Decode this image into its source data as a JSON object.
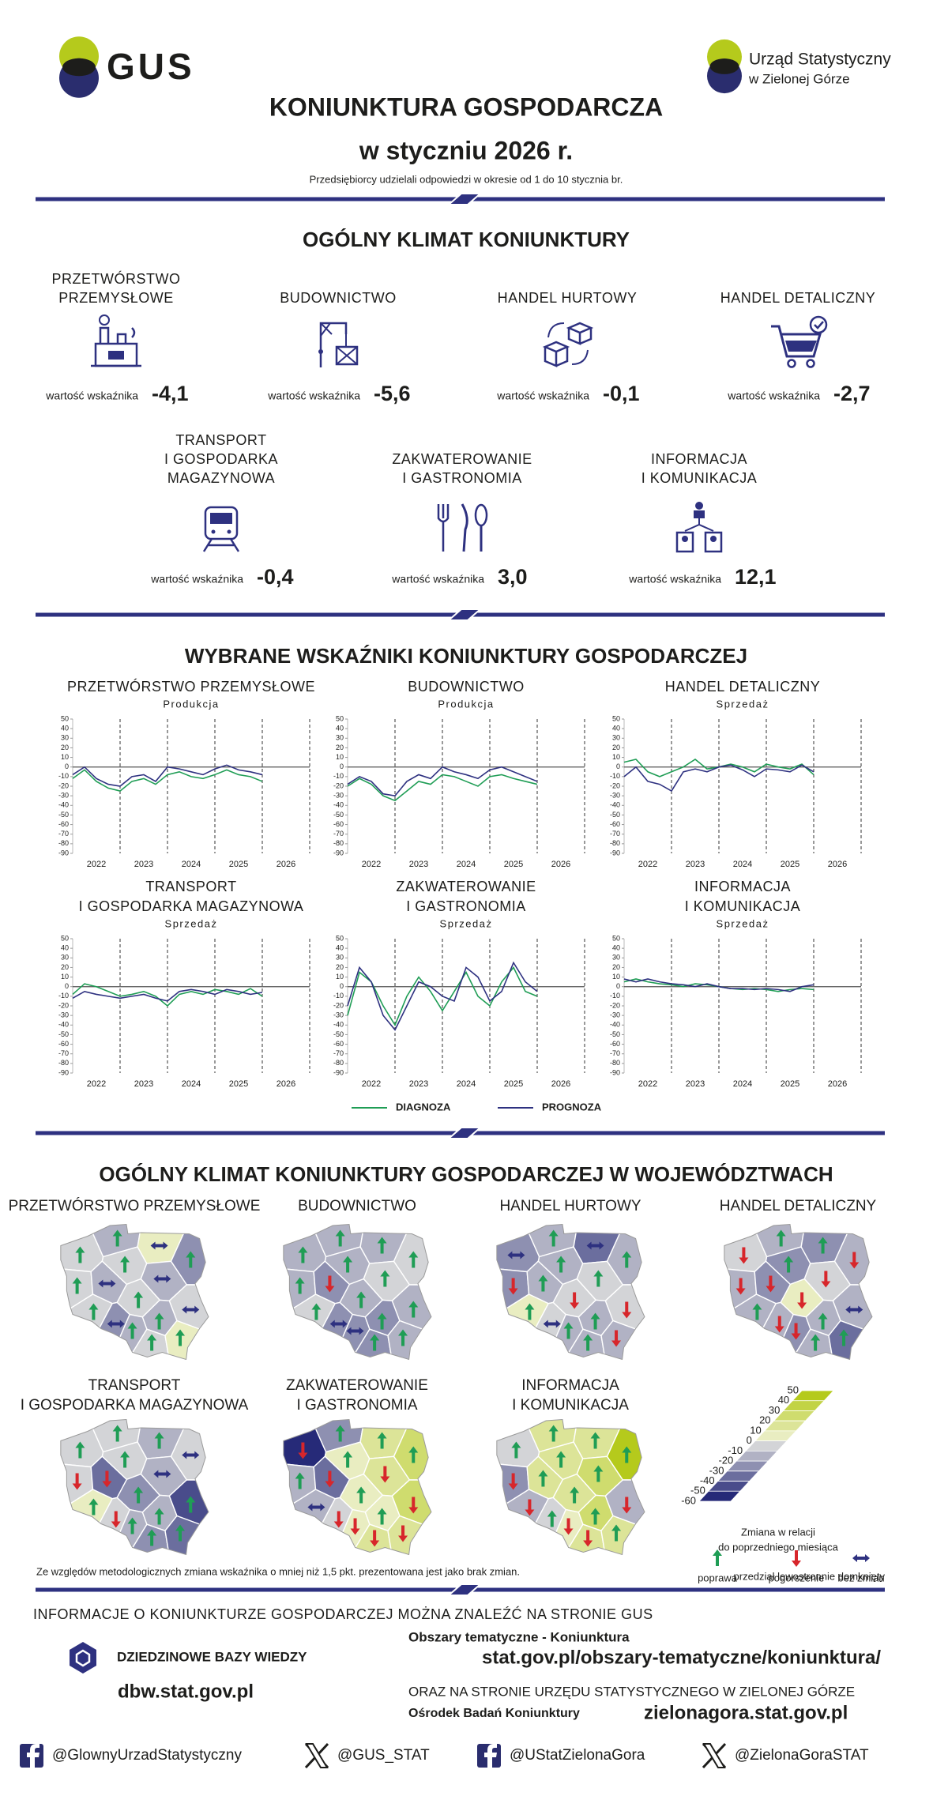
{
  "header": {
    "logo": "GUS",
    "office": [
      "Urząd Statystyczny",
      "w Zielonej Górze"
    ],
    "title": "KONIUNKTURA GOSPODARCZA",
    "subtitle": "w styczniu 2026 r.",
    "note": "Przedsiębiorcy udzielali odpowiedzi w okresie od 1 do 10 stycznia br."
  },
  "climate": {
    "heading": "OGÓLNY KLIMAT KONIUNKTURY",
    "value_caption": "wartość wskaźnika",
    "sectors": [
      {
        "label": [
          "PRZETWÓRSTWO",
          "PRZEMYSŁOWE"
        ],
        "value": "-4,1"
      },
      {
        "label": [
          "BUDOWNICTWO"
        ],
        "value": "-5,6"
      },
      {
        "label": [
          "HANDEL HURTOWY"
        ],
        "value": "-0,1"
      },
      {
        "label": [
          "HANDEL DETALICZNY"
        ],
        "value": "-2,7"
      },
      {
        "label": [
          "TRANSPORT",
          "I GOSPODARKA",
          "MAGAZYNOWA"
        ],
        "value": "-0,4"
      },
      {
        "label": [
          "ZAKWATEROWANIE",
          "I GASTRONOMIA"
        ],
        "value": "3,0"
      },
      {
        "label": [
          "INFORMACJA",
          "I KOMUNIKACJA"
        ],
        "value": "12,1"
      }
    ]
  },
  "indicators_heading": "WYBRANE WSKAŹNIKI KONIUNKTURY GOSPODARCZEJ",
  "chart_data": [
    {
      "type": "line",
      "title": [
        "PRZETWÓRSTWO PRZEMYSŁOWE"
      ],
      "subtitle": "Produkcja",
      "x": [
        2022,
        2022.25,
        2022.5,
        2022.75,
        2023,
        2023.25,
        2023.5,
        2023.75,
        2024,
        2024.25,
        2024.5,
        2024.75,
        2025,
        2025.25,
        2025.5,
        2025.75,
        2026
      ],
      "series": [
        {
          "name": "DIAGNOZA",
          "color": "#1f9d55",
          "values": [
            -12,
            -3,
            -15,
            -22,
            -25,
            -15,
            -12,
            -18,
            -8,
            -5,
            -10,
            -12,
            -8,
            -3,
            -8,
            -10,
            -15
          ]
        },
        {
          "name": "PROGNOZA",
          "color": "#2e3180",
          "values": [
            -8,
            0,
            -12,
            -18,
            -20,
            -10,
            -8,
            -15,
            0,
            -2,
            -5,
            -8,
            -2,
            2,
            -3,
            -5,
            -8
          ]
        }
      ],
      "xlim": [
        2022,
        2027
      ],
      "xticks": [
        {
          "value": 2022.5,
          "label": "2022"
        },
        {
          "value": 2023.5,
          "label": "2023"
        },
        {
          "value": 2024.5,
          "label": "2024"
        },
        {
          "value": 2025.5,
          "label": "2025"
        },
        {
          "value": 2026.5,
          "label": "2026"
        }
      ],
      "xgrid": [
        2023,
        2024,
        2025,
        2026,
        2027
      ],
      "ylim": [
        -90,
        50
      ],
      "yticks": [
        -90,
        -80,
        -70,
        -60,
        -50,
        -40,
        -30,
        -20,
        -10,
        0,
        10,
        20,
        30,
        40,
        50
      ]
    },
    {
      "type": "line",
      "title": [
        "BUDOWNICTWO"
      ],
      "subtitle": "Produkcja",
      "x": [
        2022,
        2022.25,
        2022.5,
        2022.75,
        2023,
        2023.25,
        2023.5,
        2023.75,
        2024,
        2024.25,
        2024.5,
        2024.75,
        2025,
        2025.25,
        2025.5,
        2025.75,
        2026
      ],
      "series": [
        {
          "name": "DIAGNOZA",
          "color": "#1f9d55",
          "values": [
            -20,
            -12,
            -18,
            -30,
            -35,
            -25,
            -15,
            -18,
            -8,
            -10,
            -15,
            -20,
            -10,
            -8,
            -12,
            -15,
            -18
          ]
        },
        {
          "name": "PROGNOZA",
          "color": "#2e3180",
          "values": [
            -18,
            -10,
            -15,
            -28,
            -30,
            -15,
            -8,
            -12,
            0,
            -5,
            -8,
            -12,
            -3,
            0,
            -5,
            -10,
            -15
          ]
        }
      ],
      "xlim": [
        2022,
        2027
      ],
      "xticks": [
        {
          "value": 2022.5,
          "label": "2022"
        },
        {
          "value": 2023.5,
          "label": "2023"
        },
        {
          "value": 2024.5,
          "label": "2024"
        },
        {
          "value": 2025.5,
          "label": "2025"
        },
        {
          "value": 2026.5,
          "label": "2026"
        }
      ],
      "xgrid": [
        2023,
        2024,
        2025,
        2026,
        2027
      ],
      "ylim": [
        -90,
        50
      ],
      "yticks": [
        -90,
        -80,
        -70,
        -60,
        -50,
        -40,
        -30,
        -20,
        -10,
        0,
        10,
        20,
        30,
        40,
        50
      ]
    },
    {
      "type": "line",
      "title": [
        "HANDEL DETALICZNY"
      ],
      "subtitle": "Sprzedaż",
      "x": [
        2022,
        2022.25,
        2022.5,
        2022.75,
        2023,
        2023.25,
        2023.5,
        2023.75,
        2024,
        2024.25,
        2024.5,
        2024.75,
        2025,
        2025.25,
        2025.5,
        2025.75,
        2026
      ],
      "series": [
        {
          "name": "DIAGNOZA",
          "color": "#1f9d55",
          "values": [
            5,
            8,
            -5,
            -10,
            -5,
            0,
            8,
            -2,
            0,
            3,
            0,
            -5,
            3,
            0,
            -2,
            3,
            -8
          ]
        },
        {
          "name": "PROGNOZA",
          "color": "#2e3180",
          "values": [
            -10,
            0,
            -15,
            -18,
            -25,
            -5,
            -2,
            -5,
            0,
            2,
            -3,
            -10,
            -2,
            -3,
            -5,
            2,
            -5
          ]
        }
      ],
      "xlim": [
        2022,
        2027
      ],
      "xticks": [
        {
          "value": 2022.5,
          "label": "2022"
        },
        {
          "value": 2023.5,
          "label": "2023"
        },
        {
          "value": 2024.5,
          "label": "2024"
        },
        {
          "value": 2025.5,
          "label": "2025"
        },
        {
          "value": 2026.5,
          "label": "2026"
        }
      ],
      "xgrid": [
        2023,
        2024,
        2025,
        2026,
        2027
      ],
      "ylim": [
        -90,
        50
      ],
      "yticks": [
        -90,
        -80,
        -70,
        -60,
        -50,
        -40,
        -30,
        -20,
        -10,
        0,
        10,
        20,
        30,
        40,
        50
      ]
    },
    {
      "type": "line",
      "title": [
        "TRANSPORT",
        "I GOSPODARKA MAGAZYNOWA"
      ],
      "subtitle": "Sprzedaż",
      "x": [
        2022,
        2022.25,
        2022.5,
        2022.75,
        2023,
        2023.25,
        2023.5,
        2023.75,
        2024,
        2024.25,
        2024.5,
        2024.75,
        2025,
        2025.25,
        2025.5,
        2025.75,
        2026
      ],
      "series": [
        {
          "name": "DIAGNOZA",
          "color": "#1f9d55",
          "values": [
            -8,
            3,
            0,
            -5,
            -10,
            -8,
            -5,
            -10,
            -20,
            -8,
            -5,
            -8,
            -3,
            -5,
            -8,
            -2,
            -10
          ]
        },
        {
          "name": "PROGNOZA",
          "color": "#2e3180",
          "values": [
            -12,
            -5,
            -8,
            -10,
            -12,
            -10,
            -8,
            -12,
            -15,
            -5,
            -3,
            -5,
            -8,
            -3,
            -5,
            -8,
            -6
          ]
        }
      ],
      "xlim": [
        2022,
        2027
      ],
      "xticks": [
        {
          "value": 2022.5,
          "label": "2022"
        },
        {
          "value": 2023.5,
          "label": "2023"
        },
        {
          "value": 2024.5,
          "label": "2024"
        },
        {
          "value": 2025.5,
          "label": "2025"
        },
        {
          "value": 2026.5,
          "label": "2026"
        }
      ],
      "xgrid": [
        2023,
        2024,
        2025,
        2026,
        2027
      ],
      "ylim": [
        -90,
        50
      ],
      "yticks": [
        -90,
        -80,
        -70,
        -60,
        -50,
        -40,
        -30,
        -20,
        -10,
        0,
        10,
        20,
        30,
        40,
        50
      ]
    },
    {
      "type": "line",
      "title": [
        "ZAKWATEROWANIE",
        "I GASTRONOMIA"
      ],
      "subtitle": "Sprzedaż",
      "x": [
        2022,
        2022.25,
        2022.5,
        2022.75,
        2023,
        2023.25,
        2023.5,
        2023.75,
        2024,
        2024.25,
        2024.5,
        2024.75,
        2025,
        2025.25,
        2025.5,
        2025.75,
        2026
      ],
      "series": [
        {
          "name": "DIAGNOZA",
          "color": "#1f9d55",
          "values": [
            -30,
            15,
            5,
            -20,
            -40,
            -10,
            10,
            -5,
            -25,
            -5,
            15,
            -10,
            -20,
            5,
            20,
            -5,
            -10
          ]
        },
        {
          "name": "PROGNOZA",
          "color": "#2e3180",
          "values": [
            -20,
            20,
            5,
            -30,
            -45,
            -20,
            5,
            0,
            -10,
            -15,
            20,
            10,
            -15,
            -5,
            25,
            5,
            -5
          ]
        }
      ],
      "xlim": [
        2022,
        2027
      ],
      "xticks": [
        {
          "value": 2022.5,
          "label": "2022"
        },
        {
          "value": 2023.5,
          "label": "2023"
        },
        {
          "value": 2024.5,
          "label": "2024"
        },
        {
          "value": 2025.5,
          "label": "2025"
        },
        {
          "value": 2026.5,
          "label": "2026"
        }
      ],
      "xgrid": [
        2023,
        2024,
        2025,
        2026,
        2027
      ],
      "ylim": [
        -90,
        50
      ],
      "yticks": [
        -90,
        -80,
        -70,
        -60,
        -50,
        -40,
        -30,
        -20,
        -10,
        0,
        10,
        20,
        30,
        40,
        50
      ]
    },
    {
      "type": "line",
      "title": [
        "INFORMACJA",
        "I KOMUNIKACJA"
      ],
      "subtitle": "Sprzedaż",
      "x": [
        2022,
        2022.25,
        2022.5,
        2022.75,
        2023,
        2023.25,
        2023.5,
        2023.75,
        2024,
        2024.25,
        2024.5,
        2024.75,
        2025,
        2025.25,
        2025.5,
        2025.75,
        2026
      ],
      "series": [
        {
          "name": "DIAGNOZA",
          "color": "#1f9d55",
          "values": [
            5,
            8,
            5,
            3,
            2,
            0,
            3,
            2,
            0,
            -2,
            -3,
            -2,
            -3,
            -5,
            -3,
            -2,
            -3
          ]
        },
        {
          "name": "PROGNOZA",
          "color": "#2e3180",
          "values": [
            8,
            5,
            8,
            5,
            3,
            2,
            0,
            3,
            0,
            -2,
            -2,
            -3,
            -2,
            -3,
            -5,
            0,
            2
          ]
        }
      ],
      "xlim": [
        2022,
        2027
      ],
      "xticks": [
        {
          "value": 2022.5,
          "label": "2022"
        },
        {
          "value": 2023.5,
          "label": "2023"
        },
        {
          "value": 2024.5,
          "label": "2024"
        },
        {
          "value": 2025.5,
          "label": "2025"
        },
        {
          "value": 2026.5,
          "label": "2026"
        }
      ],
      "xgrid": [
        2023,
        2024,
        2025,
        2026,
        2027
      ],
      "ylim": [
        -90,
        50
      ],
      "yticks": [
        -90,
        -80,
        -70,
        -60,
        -50,
        -40,
        -30,
        -20,
        -10,
        0,
        10,
        20,
        30,
        40,
        50
      ]
    }
  ],
  "regions": {
    "heading": "OGÓLNY KLIMAT KONIUNKTURY GOSPODARCZEJ W WOJEWÓDZTWACH",
    "maps": [
      {
        "title": [
          "PRZETWÓRSTWO PRZEMYSŁOWE"
        ],
        "levels": [
          -5,
          -15,
          0,
          -25,
          -5,
          -20,
          -10,
          -15,
          -5,
          -10,
          -5,
          -25,
          -15,
          -20,
          -10,
          0
        ],
        "arrows": [
          "up",
          "up",
          "flat",
          "up",
          "up",
          "flat",
          "up",
          "flat",
          "up",
          "flat",
          "up",
          "flat",
          "up",
          "up",
          "up",
          "up"
        ]
      },
      {
        "title": [
          "BUDOWNICTWO"
        ],
        "levels": [
          -15,
          -20,
          -20,
          -10,
          -15,
          -25,
          -15,
          -10,
          -20,
          -20,
          -5,
          -30,
          -25,
          -30,
          -25,
          -20
        ],
        "arrows": [
          "up",
          "up",
          "up",
          "up",
          "up",
          "down",
          "up",
          "up",
          "up",
          "up",
          "up",
          "flat",
          "flat",
          "up",
          "up",
          "up"
        ]
      },
      {
        "title": [
          "HANDEL HURTOWY"
        ],
        "levels": [
          -25,
          -20,
          -35,
          -15,
          -30,
          -15,
          -15,
          -5,
          -10,
          -10,
          0,
          -5,
          -15,
          -20,
          -20,
          -15
        ],
        "arrows": [
          "flat",
          "up",
          "flat",
          "up",
          "down",
          "up",
          "up",
          "up",
          "down",
          "down",
          "up",
          "flat",
          "up",
          "up",
          "up",
          "down"
        ]
      },
      {
        "title": [
          "HANDEL DETALICZNY"
        ],
        "levels": [
          -10,
          -20,
          -25,
          -20,
          -20,
          -30,
          -25,
          -5,
          0,
          -15,
          -20,
          -15,
          -30,
          -20,
          -15,
          -35
        ],
        "arrows": [
          "down",
          "up",
          "up",
          "down",
          "down",
          "down",
          "up",
          "down",
          "down",
          "flat",
          "up",
          "down",
          "down",
          "up",
          "up",
          "up"
        ]
      },
      {
        "title": [
          "TRANSPORT",
          "I GOSPODARKA MAGAZYNOWA"
        ],
        "levels": [
          -5,
          -10,
          -15,
          -10,
          -5,
          -40,
          -10,
          -15,
          -25,
          -45,
          0,
          -10,
          -15,
          -20,
          -25,
          -40
        ],
        "arrows": [
          "up",
          "up",
          "up",
          "flat",
          "down",
          "down",
          "up",
          "flat",
          "up",
          "up",
          "up",
          "down",
          "up",
          "up",
          "up",
          "up"
        ]
      },
      {
        "title": [
          "ZAKWATEROWANIE",
          "I GASTRONOMIA"
        ],
        "levels": [
          -60,
          -25,
          10,
          20,
          -15,
          -35,
          5,
          10,
          0,
          20,
          -20,
          -10,
          0,
          5,
          15,
          15
        ],
        "arrows": [
          "down",
          "up",
          "up",
          "up",
          "up",
          "down",
          "up",
          "down",
          "up",
          "down",
          "flat",
          "down",
          "down",
          "up",
          "down",
          "down"
        ]
      },
      {
        "title": [
          "INFORMACJA",
          "I KOMUNIKACJA"
        ],
        "levels": [
          -10,
          10,
          10,
          40,
          -25,
          10,
          10,
          20,
          15,
          -15,
          -20,
          -5,
          0,
          20,
          15,
          10
        ],
        "arrows": [
          "up",
          "up",
          "up",
          "up",
          "down",
          "up",
          "up",
          "up",
          "up",
          "down",
          "down",
          "up",
          "down",
          "up",
          "down",
          "up"
        ]
      }
    ],
    "scale": {
      "ticks": [
        50,
        40,
        30,
        20,
        10,
        0,
        -10,
        -20,
        -30,
        -40,
        -50,
        -60
      ],
      "low_color": "#262a78",
      "mid_color": "#f6f6ea",
      "high_color": "#b5ca1c"
    },
    "scale_caption": [
      "Zmiana w relacji",
      "do poprzedniego miesiąca"
    ],
    "arrow_legend": [
      {
        "symbol": "up",
        "color": "#1f9d55",
        "label": "poprawa"
      },
      {
        "symbol": "down",
        "color": "#d7262b",
        "label": "pogorszenie"
      },
      {
        "symbol": "flat",
        "color": "#2e3180",
        "label": "bez zmian"
      }
    ],
    "note": "Ze względów metodologicznych zmiana wskaźnika o mniej niż 1,5 pkt. prezentowana jest jako brak zmian.",
    "scale_note": "przedział lewostronnie domknięty"
  },
  "links": {
    "heading": "INFORMACJE O KONIUNKTURZE GOSPODARCZEJ MOŻNA ZNALEŹĆ NA STRONIE GUS",
    "dbw_name": "DZIEDZINOWE BAZY WIEDZY",
    "dbw_url": "dbw.stat.gov.pl",
    "topic": "Obszary tematyczne - Koniunktura",
    "topic_url": "stat.gov.pl/obszary-tematyczne/koniunktura/",
    "office_heading": "ORAZ NA STRONIE URZĘDU STATYSTYCZNEGO W ZIELONEJ GÓRZE",
    "office_unit": "Ośrodek Badań Koniunktury",
    "office_url": "zielonagora.stat.gov.pl"
  },
  "footer": {
    "handles": [
      {
        "network": "facebook",
        "handle": "@GlownyUrzadStatystyczny"
      },
      {
        "network": "x",
        "handle": "@GUS_STAT"
      },
      {
        "network": "facebook",
        "handle": "@UStatZielonaGora"
      },
      {
        "network": "x",
        "handle": "@ZielonaGoraSTAT"
      }
    ]
  }
}
